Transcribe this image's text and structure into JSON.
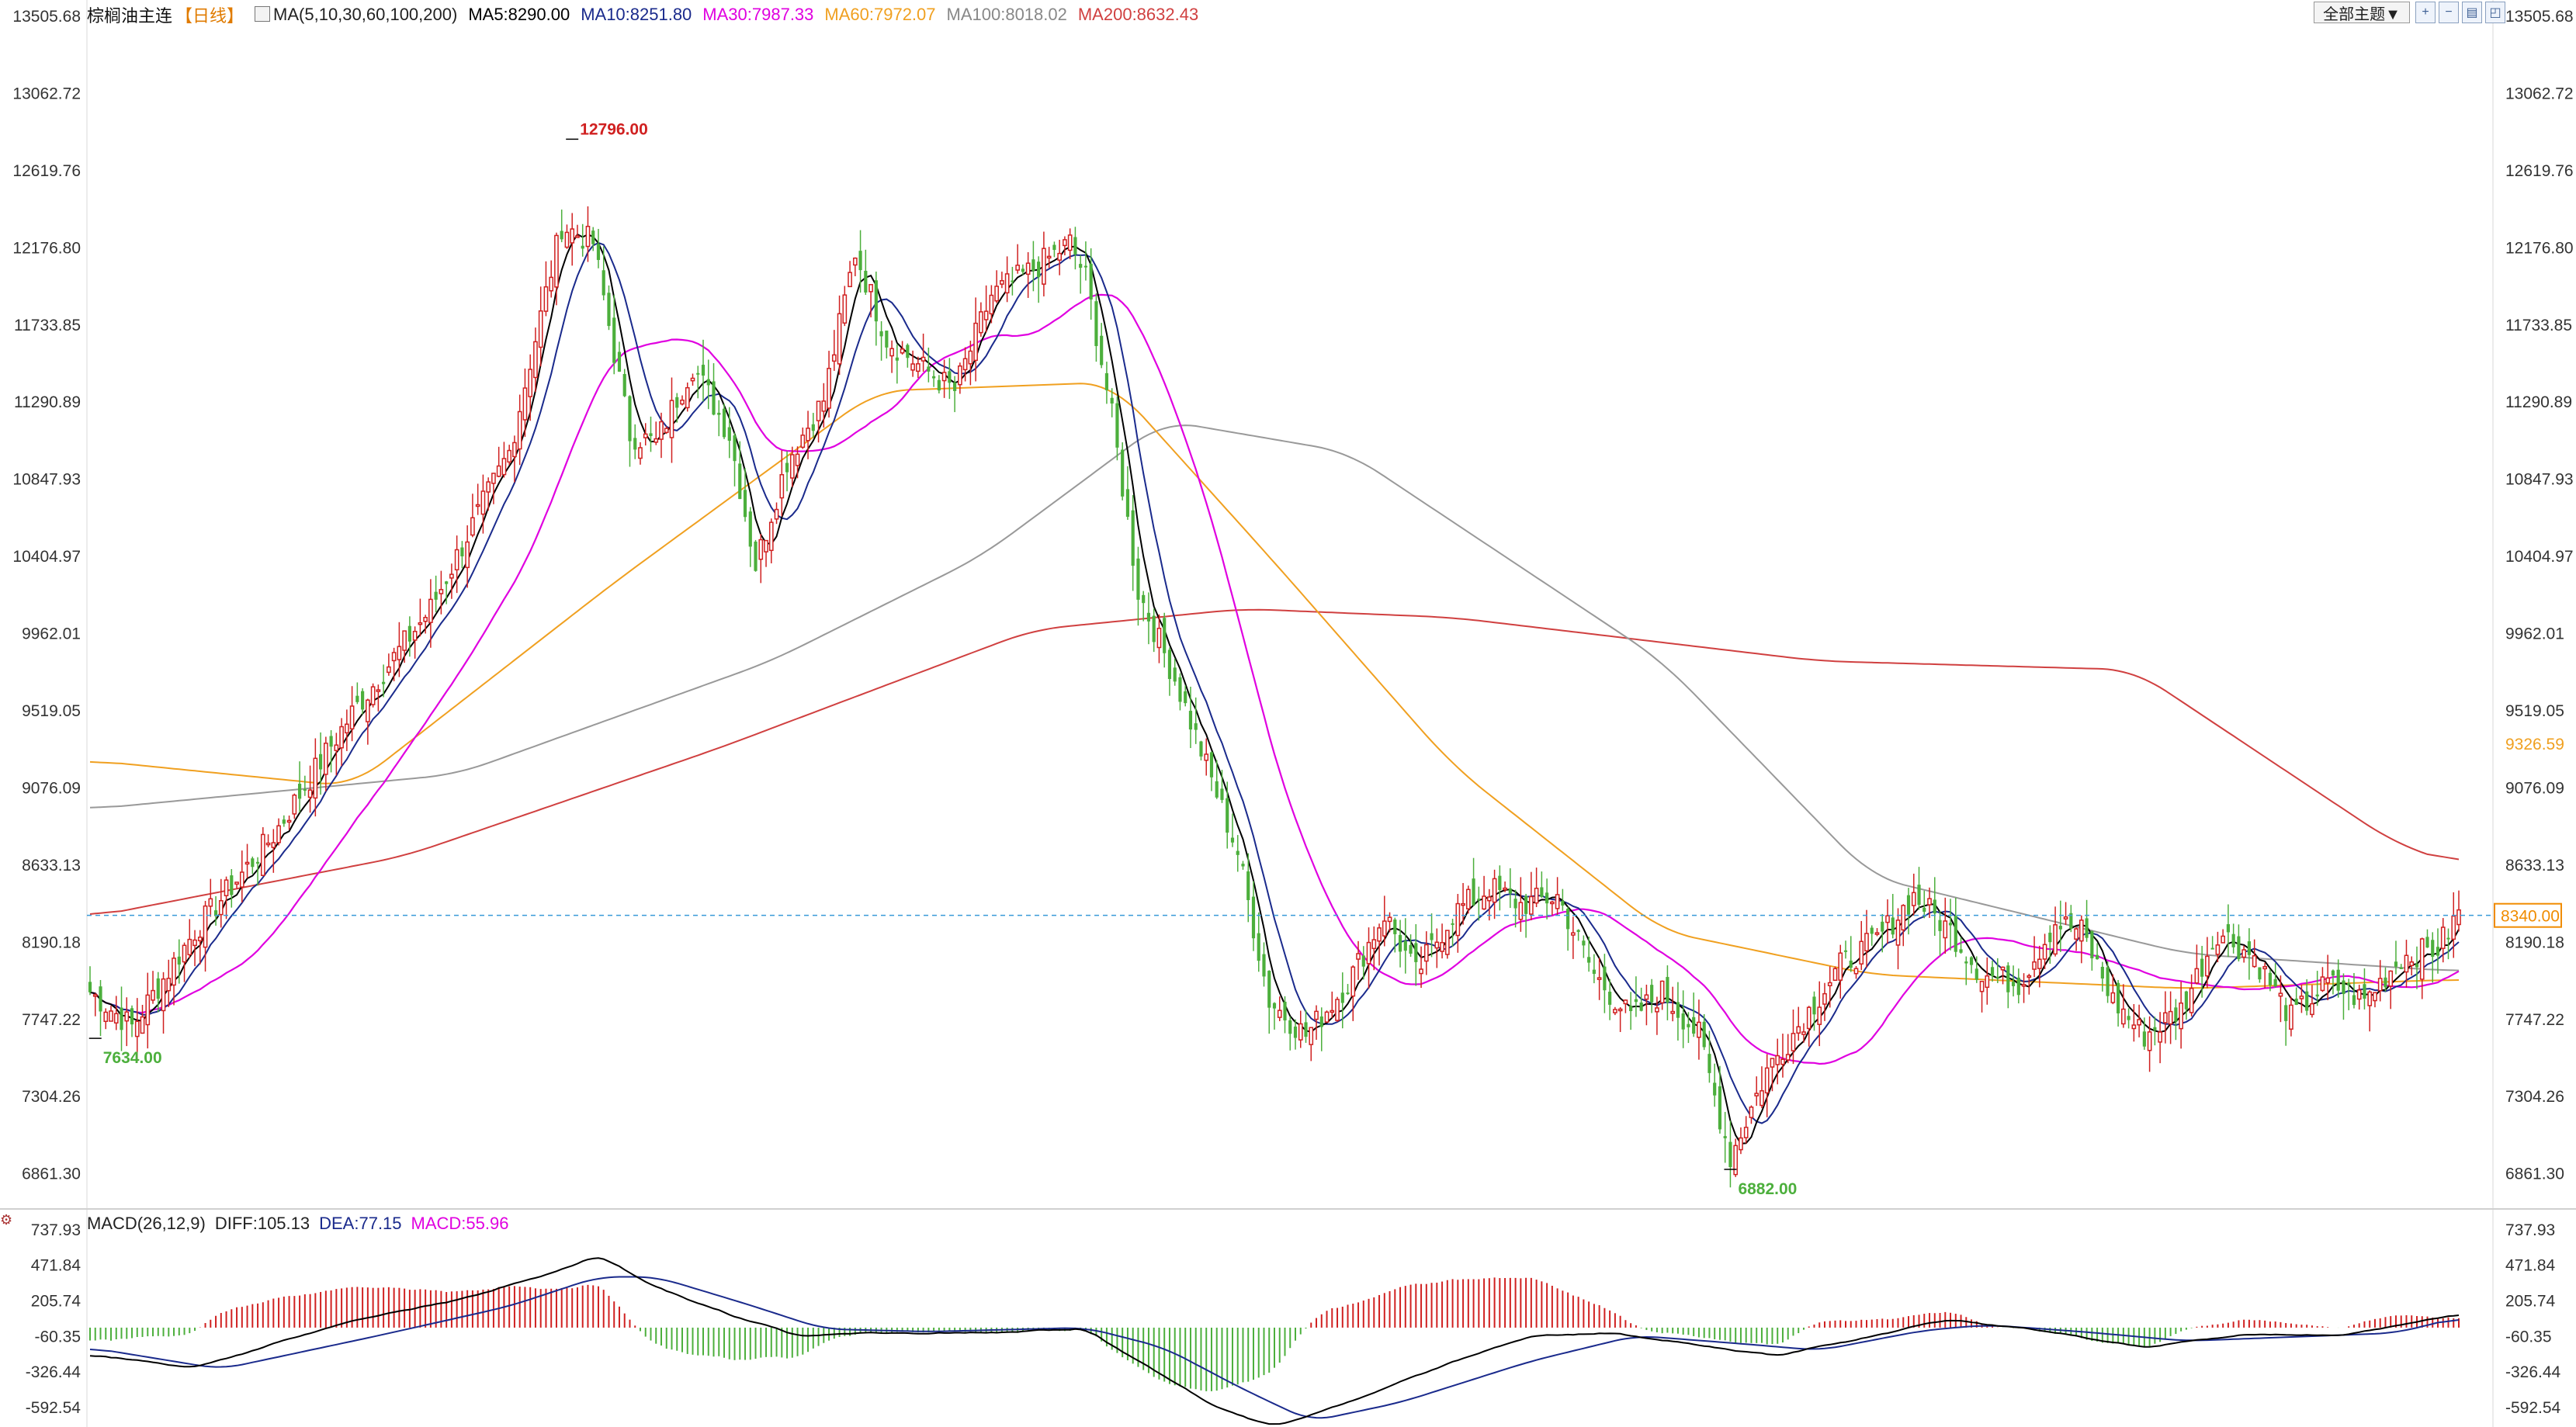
{
  "header": {
    "name": "棕榈油主连",
    "period": "【日线】",
    "ma_label": "MA(5,10,30,60,100,200)",
    "ma5": "MA5:8290.00",
    "ma10": "MA10:8251.80",
    "ma30": "MA30:7987.33",
    "ma60": "MA60:7972.07",
    "ma100": "MA100:8018.02",
    "ma200": "MA200:8632.43",
    "theme_button": "全部主题▼"
  },
  "macd_header": {
    "label": "MACD(26,12,9)",
    "diff": "DIFF:105.13",
    "dea": "DEA:77.15",
    "macd": "MACD:55.96"
  },
  "colors": {
    "up": "#d02020",
    "down": "#4caf3c",
    "ma5": "#000000",
    "ma10": "#1a2a8c",
    "ma30": "#e000e0",
    "ma60": "#f0a020",
    "ma100": "#999999",
    "ma200": "#d04040",
    "last_price_line": "#3a9ad9",
    "last_price_label": "#f08c00"
  },
  "icons": [
    "zoom-in-icon",
    "zoom-out-icon",
    "layout-icon",
    "fullscreen-icon"
  ],
  "chart_data": {
    "type": "candlestick",
    "title": "棕榈油主连 日线",
    "price_axis_labels": [
      "13505.68",
      "13062.72",
      "12619.76",
      "12176.80",
      "11733.85",
      "11290.89",
      "10847.93",
      "10404.97",
      "9962.01",
      "9519.05",
      "9076.09",
      "8633.13",
      "8190.18",
      "7747.22",
      "7304.26",
      "6861.30"
    ],
    "price_axis_values": [
      13505.68,
      13062.72,
      12619.76,
      12176.8,
      11733.85,
      11290.89,
      10847.93,
      10404.97,
      9962.01,
      9519.05,
      9076.09,
      8633.13,
      8190.18,
      7747.22,
      7304.26,
      6861.3
    ],
    "ylim": [
      6735,
      13505.68
    ],
    "annotations": {
      "high": {
        "label": "12796.00",
        "value": 12796.0,
        "position": "left-upper"
      },
      "low_left": {
        "label": "7634.00",
        "value": 7634.0,
        "position": "left-bottom"
      },
      "low_mid": {
        "label": "6882.00",
        "value": 6882.0,
        "position": "middle-bottom"
      }
    },
    "last_price": {
      "label": "8340.00",
      "value": 8340.0
    },
    "ma60_marker": {
      "label": "9326.59",
      "value": 9326.59
    },
    "close_anchors": [
      [
        0,
        7900
      ],
      [
        8,
        7700
      ],
      [
        20,
        8250
      ],
      [
        35,
        8800
      ],
      [
        50,
        9500
      ],
      [
        65,
        10100
      ],
      [
        80,
        11000
      ],
      [
        90,
        12300
      ],
      [
        96,
        12200
      ],
      [
        103,
        11100
      ],
      [
        108,
        11050
      ],
      [
        115,
        11500
      ],
      [
        122,
        11100
      ],
      [
        127,
        10350
      ],
      [
        133,
        10950
      ],
      [
        140,
        11300
      ],
      [
        146,
        12150
      ],
      [
        152,
        11650
      ],
      [
        158,
        11500
      ],
      [
        165,
        11350
      ],
      [
        172,
        11900
      ],
      [
        180,
        12050
      ],
      [
        187,
        12200
      ],
      [
        190,
        12000
      ],
      [
        195,
        11200
      ],
      [
        200,
        10200
      ],
      [
        207,
        9700
      ],
      [
        213,
        9200
      ],
      [
        219,
        8700
      ],
      [
        225,
        7850
      ],
      [
        232,
        7650
      ],
      [
        240,
        7950
      ],
      [
        247,
        8350
      ],
      [
        253,
        8000
      ],
      [
        260,
        8350
      ],
      [
        267,
        8500
      ],
      [
        273,
        8400
      ],
      [
        280,
        8450
      ],
      [
        287,
        8000
      ],
      [
        294,
        7750
      ],
      [
        300,
        7900
      ],
      [
        307,
        7650
      ],
      [
        313,
        6950
      ],
      [
        320,
        7450
      ],
      [
        327,
        7750
      ],
      [
        334,
        8050
      ],
      [
        341,
        8200
      ],
      [
        348,
        8450
      ],
      [
        355,
        8250
      ],
      [
        361,
        8000
      ],
      [
        368,
        7950
      ],
      [
        375,
        8300
      ],
      [
        380,
        8250
      ],
      [
        386,
        7850
      ],
      [
        392,
        7650
      ],
      [
        399,
        7800
      ],
      [
        406,
        8250
      ],
      [
        413,
        8100
      ],
      [
        420,
        7750
      ],
      [
        427,
        7950
      ],
      [
        434,
        7850
      ],
      [
        441,
        8100
      ],
      [
        448,
        8150
      ],
      [
        452,
        8350
      ]
    ],
    "ma200_anchors": [
      [
        0,
        8330
      ],
      [
        60,
        8680
      ],
      [
        120,
        9300
      ],
      [
        180,
        9980
      ],
      [
        220,
        10100
      ],
      [
        260,
        10050
      ],
      [
        330,
        9800
      ],
      [
        390,
        9750
      ],
      [
        440,
        8750
      ],
      [
        452,
        8632
      ]
    ],
    "ma100_anchors": [
      [
        0,
        8950
      ],
      [
        70,
        9150
      ],
      [
        130,
        9800
      ],
      [
        170,
        10400
      ],
      [
        205,
        11180
      ],
      [
        240,
        11000
      ],
      [
        300,
        9800
      ],
      [
        340,
        8560
      ],
      [
        400,
        8120
      ],
      [
        452,
        8018
      ]
    ],
    "ma60_anchors": [
      [
        0,
        9230
      ],
      [
        50,
        9080
      ],
      [
        100,
        10250
      ],
      [
        150,
        11350
      ],
      [
        195,
        11400
      ],
      [
        225,
        10400
      ],
      [
        260,
        9200
      ],
      [
        300,
        8250
      ],
      [
        340,
        8000
      ],
      [
        400,
        7920
      ],
      [
        452,
        7972
      ]
    ],
    "macd_axis_labels": [
      "737.93",
      "471.84",
      "205.74",
      "-60.35",
      "-326.44",
      "-592.54"
    ],
    "macd_axis_values": [
      737.93,
      471.84,
      205.74,
      -60.35,
      -326.44,
      -592.54
    ],
    "macd_ylim": [
      -720,
      760
    ],
    "macd_anchors": [
      [
        0,
        -200
      ],
      [
        20,
        -300
      ],
      [
        50,
        50
      ],
      [
        75,
        250
      ],
      [
        90,
        440
      ],
      [
        97,
        540
      ],
      [
        108,
        300
      ],
      [
        122,
        100
      ],
      [
        135,
        -60
      ],
      [
        150,
        -40
      ],
      [
        170,
        -40
      ],
      [
        190,
        -10
      ],
      [
        200,
        -250
      ],
      [
        215,
        -600
      ],
      [
        226,
        -740
      ],
      [
        240,
        -560
      ],
      [
        257,
        -300
      ],
      [
        275,
        -60
      ],
      [
        290,
        -40
      ],
      [
        310,
        -150
      ],
      [
        322,
        -210
      ],
      [
        340,
        -60
      ],
      [
        355,
        60
      ],
      [
        372,
        -20
      ],
      [
        392,
        -150
      ],
      [
        410,
        -50
      ],
      [
        430,
        -60
      ],
      [
        452,
        100
      ]
    ],
    "dea_anchors": [
      [
        0,
        -150
      ],
      [
        25,
        -310
      ],
      [
        55,
        -60
      ],
      [
        80,
        160
      ],
      [
        97,
        380
      ],
      [
        108,
        380
      ],
      [
        125,
        180
      ],
      [
        140,
        -10
      ],
      [
        160,
        -30
      ],
      [
        190,
        0
      ],
      [
        205,
        -150
      ],
      [
        220,
        -460
      ],
      [
        233,
        -700
      ],
      [
        250,
        -560
      ],
      [
        275,
        -250
      ],
      [
        295,
        -60
      ],
      [
        315,
        -120
      ],
      [
        330,
        -170
      ],
      [
        350,
        -20
      ],
      [
        362,
        20
      ],
      [
        380,
        -30
      ],
      [
        400,
        -100
      ],
      [
        420,
        -70
      ],
      [
        440,
        -40
      ],
      [
        452,
        77
      ]
    ],
    "bar_count": 453,
    "seed": 7
  }
}
